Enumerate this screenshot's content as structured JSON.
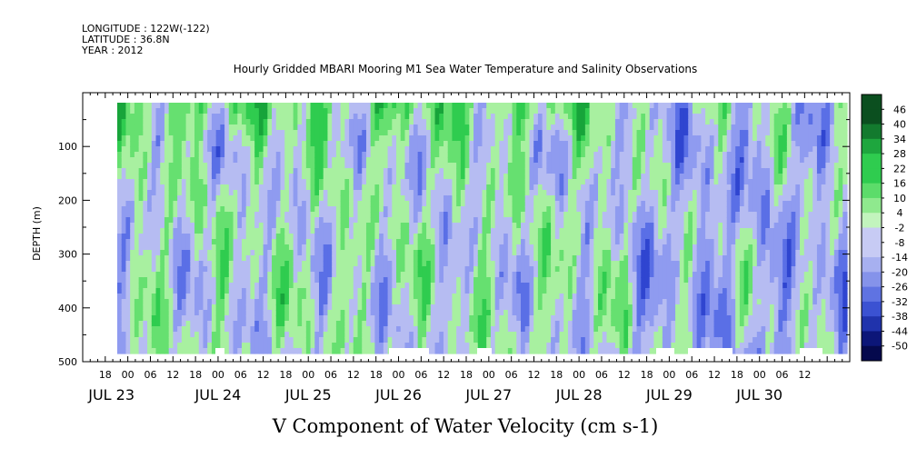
{
  "header": {
    "longitude": "LONGITUDE : 122W(-122)",
    "latitude": "LATITUDE : 36.8N",
    "year": "YEAR : 2012"
  },
  "chart_data": {
    "type": "heatmap",
    "title": "Hourly Gridded MBARI Mooring M1 Sea Water Temperature and Salinity Observations",
    "xlabel": "V Component of Water Velocity (cm s-1)",
    "ylabel": "DEPTH (m)",
    "x_unit": "hours",
    "x_range": [
      "2012-07-22T12:00",
      "2012-07-30T24:00"
    ],
    "y_range": [
      0,
      500
    ],
    "y_inverted": true,
    "y_ticks": [
      100,
      200,
      300,
      400,
      500
    ],
    "x_hour_labels": [
      "18",
      "00",
      "06",
      "12",
      "18",
      "00",
      "06",
      "12",
      "18",
      "00",
      "06",
      "12",
      "18",
      "00",
      "06",
      "12",
      "18",
      "00",
      "06",
      "12",
      "18",
      "00",
      "06",
      "12",
      "18",
      "00",
      "06",
      "12",
      "18",
      "00",
      "06",
      "12"
    ],
    "x_day_labels": [
      "JUL 23",
      "JUL 24",
      "JUL 25",
      "JUL 26",
      "JUL 27",
      "JUL 28",
      "JUL 29",
      "JUL 30"
    ],
    "colorbar_levels": [
      -50,
      -44,
      -38,
      -32,
      -26,
      -20,
      -14,
      -8,
      -2,
      4,
      10,
      16,
      22,
      28,
      34,
      40,
      46
    ],
    "colorbar_labels": [
      "46",
      "40",
      "34",
      "28",
      "22",
      "16",
      "10",
      "4",
      "-2",
      "-8",
      "-14",
      "-20",
      "-26",
      "-32",
      "-38",
      "-44",
      "-50"
    ],
    "colors": {
      "neg_light": "#b6bcf2",
      "neg_mid": "#8f9bf0",
      "neg_dark": "#5a6fe6",
      "neg_deep": "#2f45d0",
      "pos_light": "#a8f0a0",
      "pos_mid": "#66e070",
      "pos_dark": "#2fcc4f",
      "pos_deep": "#17a43a"
    }
  }
}
